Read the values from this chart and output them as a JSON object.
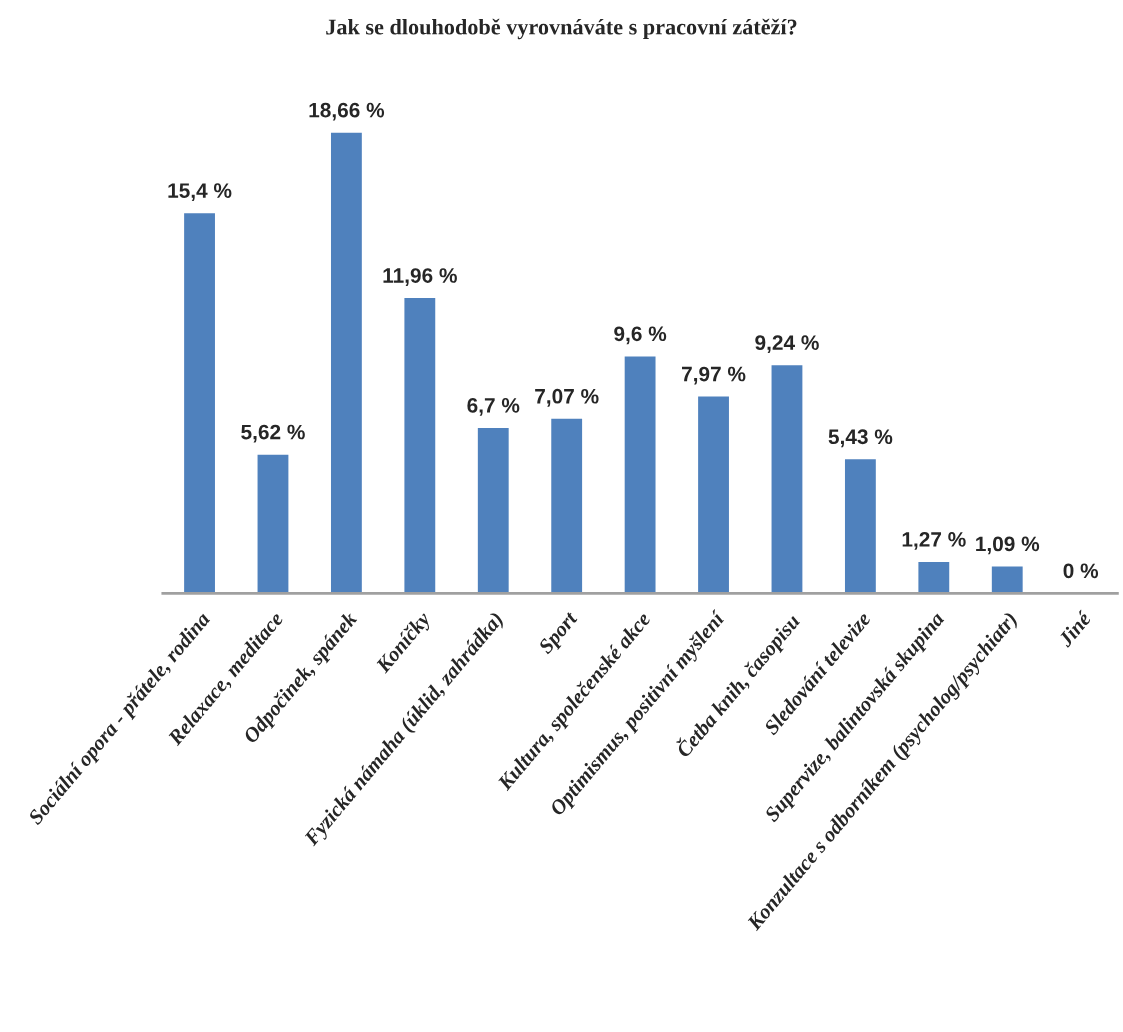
{
  "chart_data": {
    "type": "bar",
    "title": "Jak se dlouhodobě vyrovnáváte s pracovní zátěží?",
    "categories": [
      "Sociální opora - přátele, rodina",
      "Relaxace, meditace",
      "Odpočinek, spánek",
      "Koníčky",
      "Fyzická námaha (úklid, zahrádka)",
      "Sport",
      "Kultura, společenské akce",
      "Optimismus, positivní myšlení",
      "Četba knih, časopisu",
      "Sledování televize",
      "Supervize, balintovská skupina",
      "Konzultace s odborníkem (psycholog/psychiatr)",
      "Jiné"
    ],
    "values": [
      15.4,
      5.62,
      18.66,
      11.96,
      6.7,
      7.07,
      9.6,
      7.97,
      9.24,
      5.43,
      1.27,
      1.09,
      0
    ],
    "value_labels": [
      "15,4 %",
      "5,62 %",
      "18,66 %",
      "11,96 %",
      "6,7 %",
      "7,07 %",
      "9,6 %",
      "7,97 %",
      "9,24 %",
      "5,43 %",
      "1,27 %",
      "1,09 %",
      "0 %"
    ],
    "color": "#4f81bd",
    "grid": false,
    "legend": false
  }
}
